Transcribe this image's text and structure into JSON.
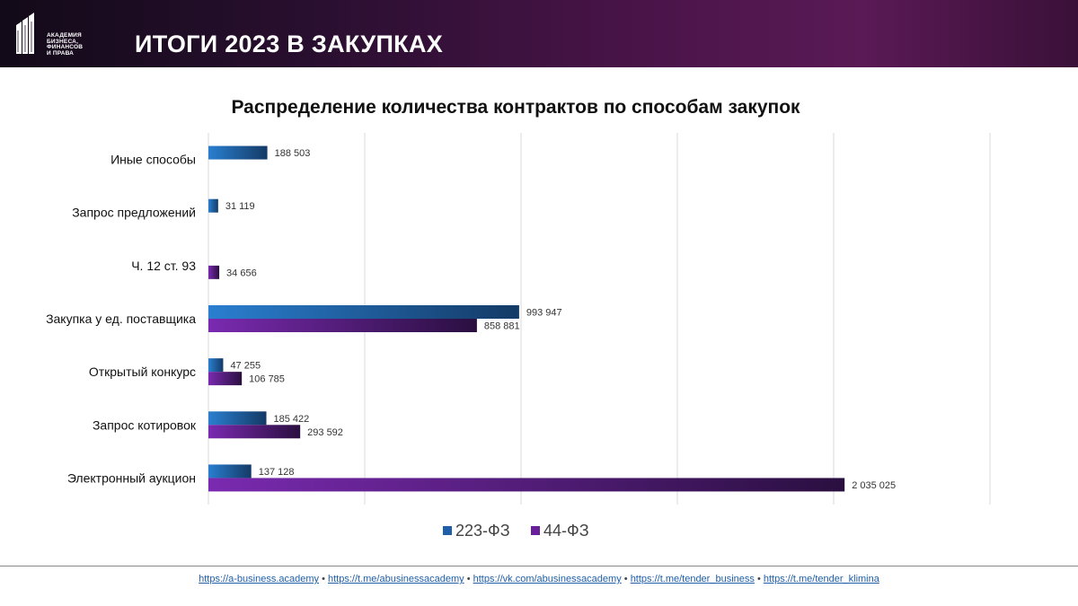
{
  "header": {
    "logo_lines": [
      "АКАДЕМИЯ",
      "БИЗНЕСА,",
      "ФИНАНСОВ",
      "И ПРАВА"
    ],
    "title": "ИТОГИ 2023 В ЗАКУПКАХ"
  },
  "chart_data": {
    "type": "bar",
    "orientation": "horizontal",
    "title": "Распределение количества контрактов по способам закупок",
    "categories": [
      "Иные способы",
      "Запрос предложений",
      "Ч. 12 ст. 93",
      "Закупка у ед. поставщика",
      "Открытый конкурс",
      "Запрос котировок",
      "Электронный аукцион"
    ],
    "series": [
      {
        "name": "223-ФЗ",
        "color": "#1f5fa8",
        "values": [
          188503,
          31119,
          null,
          993947,
          47255,
          185422,
          137128
        ],
        "labels": [
          "188 503",
          "31 119",
          "",
          "993 947",
          "47 255",
          "185 422",
          "137 128"
        ]
      },
      {
        "name": "44-ФЗ",
        "color": "#6a1f9a",
        "values": [
          null,
          null,
          34656,
          858881,
          106785,
          293592,
          2035025
        ],
        "labels": [
          "",
          "",
          "34 656",
          "858 881",
          "106 785",
          "293 592",
          "2 035 025"
        ]
      }
    ],
    "xlim": [
      0,
      2500000
    ],
    "grid": true,
    "legend": "bottom"
  },
  "footer": {
    "links": [
      "https://a-business.academy",
      "https://t.me/abusinessacademy",
      "https://vk.com/abusinessacademy",
      "https://t.me/tender_business",
      "https://t.me/tender_klimina"
    ],
    "separator": "•"
  }
}
